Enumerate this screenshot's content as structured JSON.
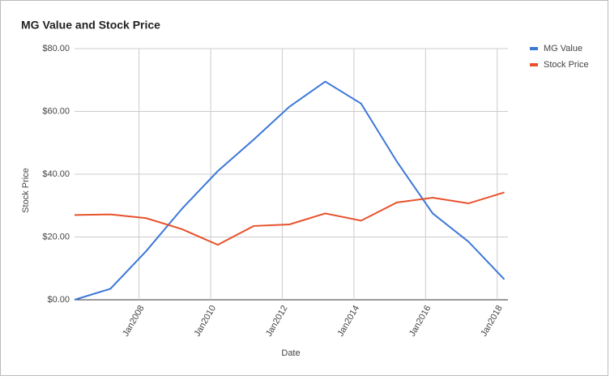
{
  "chart_data": {
    "type": "line",
    "title": "MG Value and Stock Price",
    "x_label": "Date",
    "y_label": "Stock Price",
    "x": [
      2006.2,
      2007.2,
      2008.2,
      2009.2,
      2010.2,
      2011.2,
      2012.2,
      2013.2,
      2014.2,
      2015.2,
      2016.2,
      2017.2,
      2018.2
    ],
    "series": [
      {
        "name": "MG Value",
        "color": "#3c78d8",
        "values": [
          0,
          3.5,
          15.5,
          29,
          41,
          51,
          61.5,
          69.5,
          62.5,
          44,
          27.5,
          18.5,
          6.5
        ]
      },
      {
        "name": "Stock Price",
        "color": "#e8512b",
        "values": [
          27,
          27.2,
          26,
          22.5,
          17.5,
          23.5,
          24,
          27.5,
          25.2,
          31,
          32.5,
          30.7,
          34.2
        ]
      }
    ],
    "xlim": [
      2006.2,
      2018.3
    ],
    "xticks": [
      {
        "value": 2008,
        "label": "Jan2008"
      },
      {
        "value": 2010,
        "label": "Jan2010"
      },
      {
        "value": 2012,
        "label": "Jan2012"
      },
      {
        "value": 2014,
        "label": "Jan2014"
      },
      {
        "value": 2016,
        "label": "Jan2016"
      },
      {
        "value": 2018,
        "label": "Jan2018"
      }
    ],
    "ylim": [
      0,
      80
    ],
    "yticks": [
      {
        "value": 0,
        "label": "$0.00"
      },
      {
        "value": 20,
        "label": "$20.00"
      },
      {
        "value": 40,
        "label": "$40.00"
      },
      {
        "value": 60,
        "label": "$60.00"
      },
      {
        "value": 80,
        "label": "$80.00"
      }
    ],
    "grid": true,
    "legend": "right"
  }
}
